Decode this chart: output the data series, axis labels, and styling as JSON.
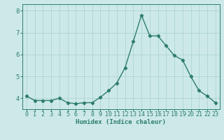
{
  "x": [
    0,
    1,
    2,
    3,
    4,
    5,
    6,
    7,
    8,
    9,
    10,
    11,
    12,
    13,
    14,
    15,
    16,
    17,
    18,
    19,
    20,
    21,
    22,
    23
  ],
  "y": [
    4.1,
    3.9,
    3.9,
    3.9,
    4.0,
    3.8,
    3.75,
    3.8,
    3.8,
    4.05,
    4.35,
    4.7,
    5.4,
    6.6,
    7.8,
    6.85,
    6.85,
    6.4,
    5.95,
    5.75,
    5.0,
    4.35,
    4.1,
    3.8
  ],
  "line_color": "#2e7d6e",
  "marker": "D",
  "marker_size": 2.2,
  "bg_color": "#cce9e7",
  "grid_color": "#aed4d1",
  "axis_color": "#2e7d6e",
  "xlabel": "Humidex (Indice chaleur)",
  "xlim": [
    -0.5,
    23.5
  ],
  "ylim": [
    3.5,
    8.3
  ],
  "yticks": [
    4,
    5,
    6,
    7,
    8
  ],
  "xticks": [
    0,
    1,
    2,
    3,
    4,
    5,
    6,
    7,
    8,
    9,
    10,
    11,
    12,
    13,
    14,
    15,
    16,
    17,
    18,
    19,
    20,
    21,
    22,
    23
  ],
  "xlabel_fontsize": 6.5,
  "tick_fontsize": 6.0,
  "line_width": 1.0
}
